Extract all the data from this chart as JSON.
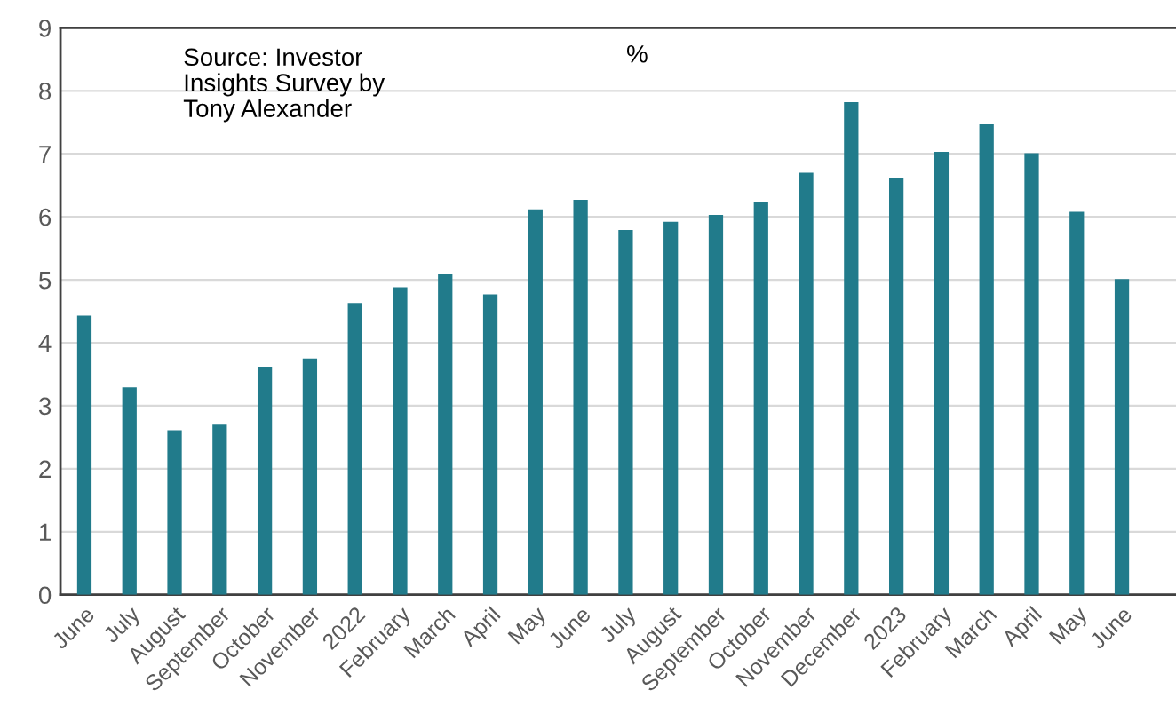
{
  "chart_data": {
    "type": "bar",
    "categories": [
      "June",
      "July",
      "August",
      "September",
      "October",
      "November",
      "2022",
      "February",
      "March",
      "April",
      "May",
      "June",
      "July",
      "August",
      "September",
      "October",
      "November",
      "December",
      "2023",
      "February",
      "March",
      "April",
      "May",
      "June"
    ],
    "values": [
      4.43,
      3.29,
      2.61,
      2.7,
      3.62,
      3.75,
      4.63,
      4.88,
      5.09,
      4.77,
      6.12,
      6.27,
      5.79,
      5.92,
      6.03,
      6.23,
      6.7,
      7.82,
      6.62,
      7.03,
      7.47,
      7.01,
      6.08,
      5.01
    ],
    "color": "#217b8b",
    "ylabel": "%",
    "ylim": [
      0,
      9
    ],
    "yticks": [
      0,
      1,
      2,
      3,
      4,
      5,
      6,
      7,
      8,
      9
    ],
    "grid": "y",
    "annotations": [
      "Source: Investor\nInsights Survey by\nTony Alexander"
    ]
  }
}
